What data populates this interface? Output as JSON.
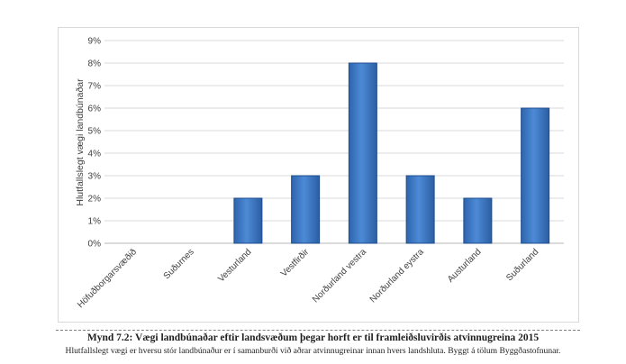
{
  "chart_data": {
    "type": "bar",
    "title": "",
    "xlabel": "",
    "ylabel": "Hlutfallslegt vægi landbúnaðar",
    "categories": [
      "Höfuðborgarsvæðið",
      "Suðurnes",
      "Vesturland",
      "Vestfirðir",
      "Norðurland vestra",
      "Norðurland eystra",
      "Austurland",
      "Suðurland"
    ],
    "values": [
      0,
      0,
      2,
      3,
      8,
      3,
      2,
      6
    ],
    "ylim": [
      0,
      9
    ],
    "yticks": [
      "0%",
      "1%",
      "2%",
      "3%",
      "4%",
      "5%",
      "6%",
      "7%",
      "8%",
      "9%"
    ],
    "grid": true,
    "bar_color": "#3a78c4"
  },
  "caption": {
    "title": "Mynd 7.2: Vægi landbúnaðar eftir landsvæðum þegar horft er til framleiðsluvirðis atvinnugreina 2015",
    "text": "Hlutfallslegt vægi er hversu stór landbúnaður er í samanburði við aðrar atvinnugreinar innan hvers landshluta. Byggt á tölum Byggðastofnunar."
  }
}
